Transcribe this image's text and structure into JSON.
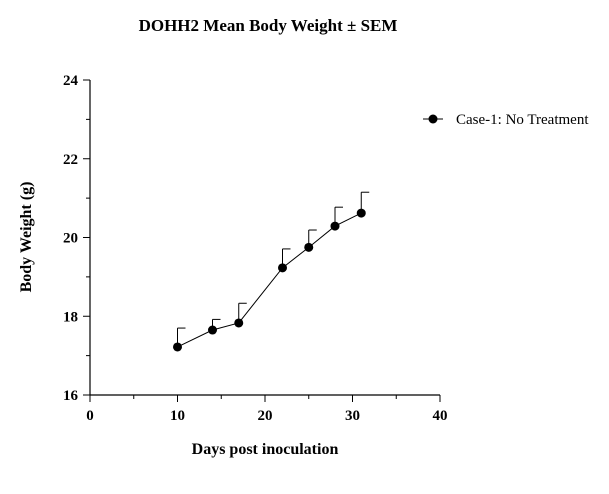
{
  "chart_data": {
    "type": "line",
    "title": "DOHH2 Mean Body Weight ± SEM",
    "xlabel": "Days post inoculation",
    "ylabel": "Body Weight (g)",
    "xlim": [
      0,
      40
    ],
    "ylim": [
      16,
      24
    ],
    "x_ticks": [
      "0",
      "10",
      "20",
      "30",
      "40"
    ],
    "y_ticks": [
      "16",
      "18",
      "20",
      "22",
      "24"
    ],
    "grid": false,
    "legend_position": "top-right",
    "series": [
      {
        "name": "Case-1: No Treatment",
        "color": "#000000",
        "marker": "circle",
        "x": [
          10,
          14,
          17,
          22,
          25,
          28,
          31
        ],
        "y": [
          17.22,
          17.65,
          17.83,
          19.23,
          19.75,
          20.29,
          20.62
        ],
        "sem": [
          0.48,
          0.27,
          0.5,
          0.48,
          0.44,
          0.48,
          0.53
        ]
      }
    ]
  }
}
